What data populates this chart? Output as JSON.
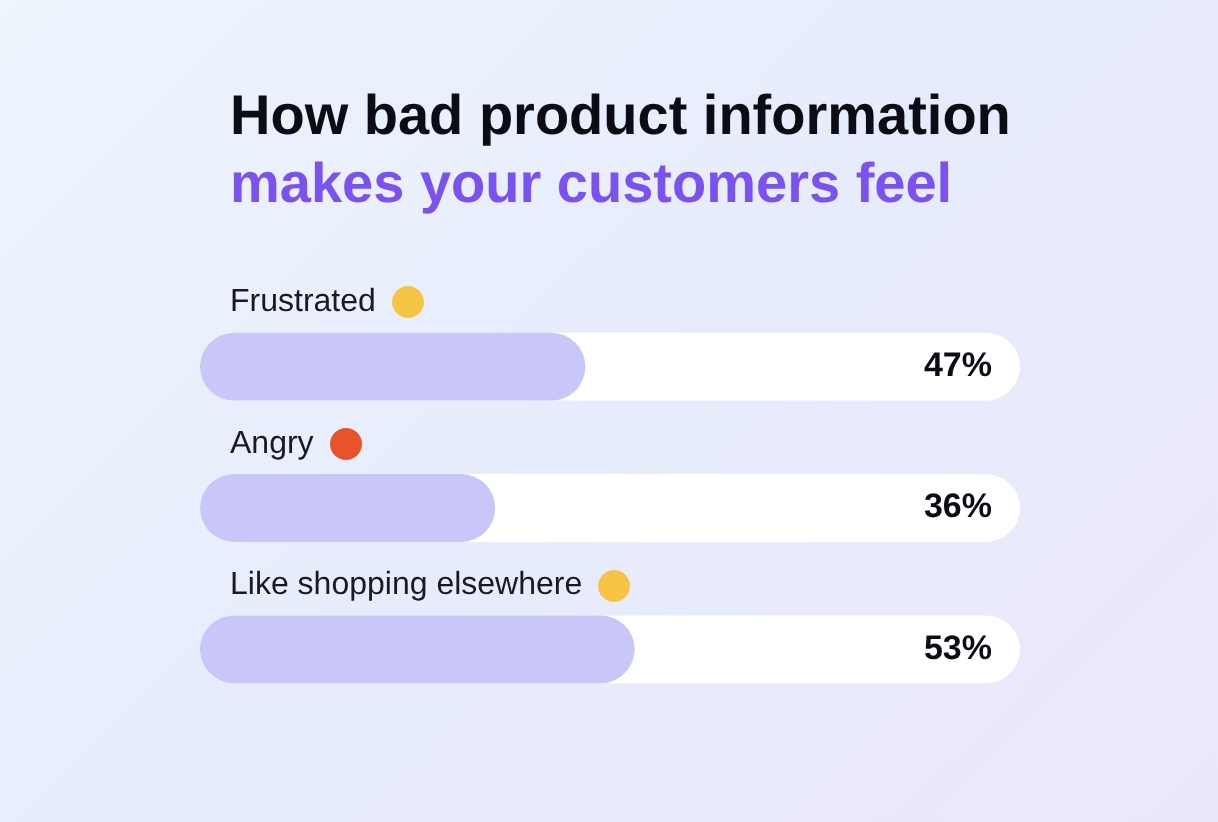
{
  "chart_data": {
    "type": "bar",
    "orientation": "horizontal",
    "title": "How bad product information",
    "subtitle": "makes your customers feel",
    "categories": [
      "Frustrated",
      "Angry",
      "Like shopping elsewhere"
    ],
    "values": [
      47,
      36,
      53
    ],
    "color": "#c9c6fa",
    "xlim": [
      0,
      100
    ],
    "tick_labels": "y",
    "value_labels": [
      "47%",
      "36%",
      "53%"
    ]
  }
}
